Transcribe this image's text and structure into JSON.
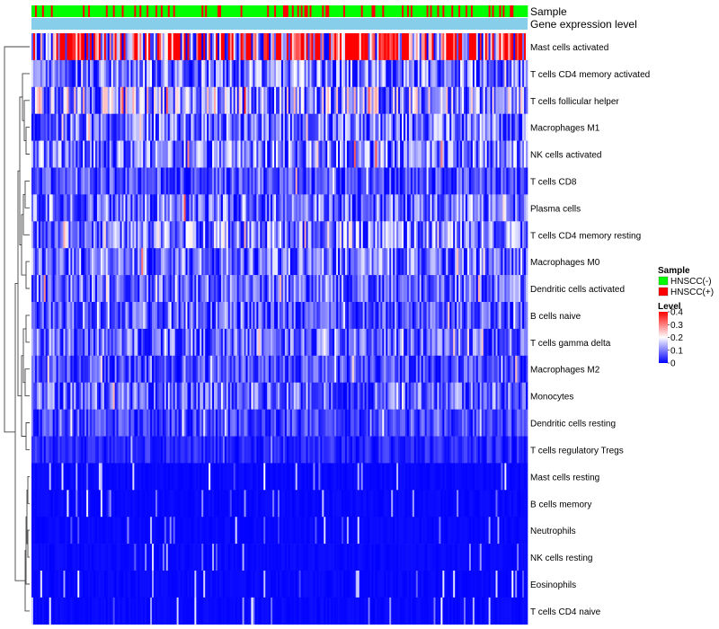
{
  "chart_data": {
    "type": "heatmap",
    "title": "",
    "annotation_tracks": [
      "Sample",
      "Gene expression level"
    ],
    "rows": [
      "Mast cells activated",
      "T cells CD4 memory activated",
      "T cells follicular helper",
      "Macrophages M1",
      "NK cells activated",
      "T cells CD8",
      "Plasma cells",
      "T cells CD4 memory resting",
      "Macrophages M0",
      "Dendritic cells activated",
      "B cells naive",
      "T cells gamma delta",
      "Macrophages M2",
      "Monocytes",
      "Dendritic cells resting",
      "T cells regulatory  Tregs",
      "Mast cells resting",
      "B cells memory",
      "Neutrophils",
      "NK cells resting",
      "Eosinophils",
      "T cells CD4 naive"
    ],
    "row_mean_levels": [
      0.3,
      0.1,
      0.13,
      0.09,
      0.1,
      0.06,
      0.09,
      0.11,
      0.09,
      0.08,
      0.07,
      0.08,
      0.06,
      0.08,
      0.05,
      0.03,
      0.01,
      0.01,
      0.01,
      0.01,
      0.005,
      0.01
    ],
    "n_samples": 280,
    "legend": {
      "sample_title": "Sample",
      "sample_entries": [
        {
          "label": "HNSCC(-)",
          "color": "#00ff00"
        },
        {
          "label": "HNSCC(+)",
          "color": "#ff0000"
        }
      ],
      "level_title": "Level",
      "level_ticks": [
        "0.4",
        "0.3",
        "0.2",
        "0.1",
        "0"
      ],
      "level_tick_values": [
        0.4,
        0.3,
        0.2,
        0.1,
        0
      ],
      "level_range": [
        0,
        0.4
      ],
      "position": "right"
    },
    "colors": {
      "low": "#0000ff",
      "mid": "#ffffff",
      "high": "#ff0000",
      "gene_expression_bar": "#87ceeb",
      "sample_negative": "#00ff00",
      "sample_positive": "#ff0000"
    }
  }
}
